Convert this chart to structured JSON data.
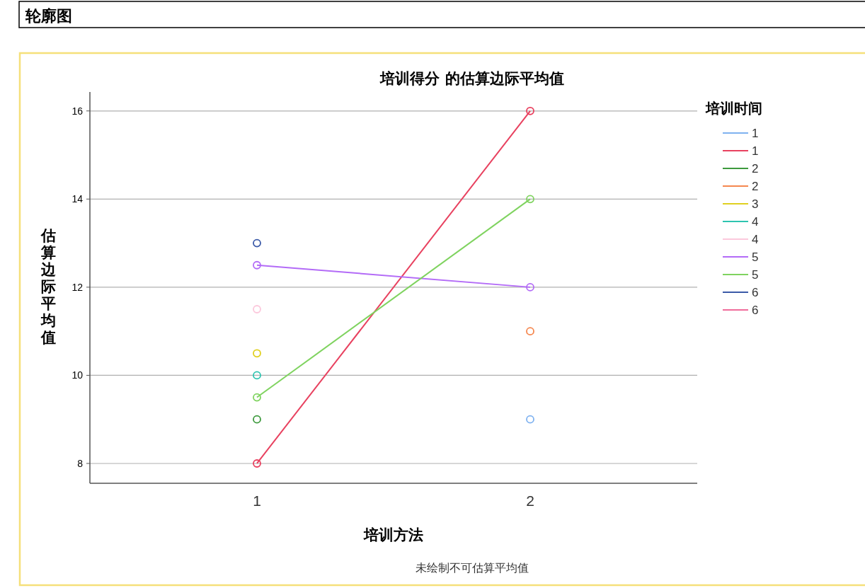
{
  "chart_data": {
    "type": "line",
    "title": "培训得分 的估算边际平均值",
    "xlabel": "培训方法",
    "ylabel": "估算边际平均值",
    "legend_title": "培训时间",
    "annotations": [
      "轮廓图",
      "未绘制不可估算平均值"
    ],
    "categories": [
      "1",
      "2"
    ],
    "series": [
      {
        "name": "1",
        "color": "#7fb2f0",
        "values": [
          null,
          9
        ]
      },
      {
        "name": "1",
        "color": "#e8415f",
        "values": [
          8,
          16
        ]
      },
      {
        "name": "2",
        "color": "#3d9a3d",
        "values": [
          9,
          null
        ]
      },
      {
        "name": "2",
        "color": "#f5874f",
        "values": [
          null,
          11
        ]
      },
      {
        "name": "3",
        "color": "#e0d020",
        "values": [
          10.5,
          null
        ]
      },
      {
        "name": "4",
        "color": "#2ec4b0",
        "values": [
          10,
          null
        ]
      },
      {
        "name": "4",
        "color": "#fcc8dc",
        "values": [
          11.5,
          null
        ]
      },
      {
        "name": "5",
        "color": "#b36bf7",
        "values": [
          12.5,
          12
        ]
      },
      {
        "name": "5",
        "color": "#7fd35f",
        "values": [
          9.5,
          14
        ]
      },
      {
        "name": "6",
        "color": "#3b5aa8",
        "values": [
          13,
          null
        ]
      },
      {
        "name": "6",
        "color": "#f06c9b",
        "values": [
          null,
          null
        ]
      }
    ],
    "ylim": [
      7.55,
      16.43
    ],
    "yticks": [
      8,
      10,
      12,
      14,
      16
    ],
    "grid": "y",
    "legend": "right",
    "marker": "circle",
    "line_style": "solid"
  }
}
